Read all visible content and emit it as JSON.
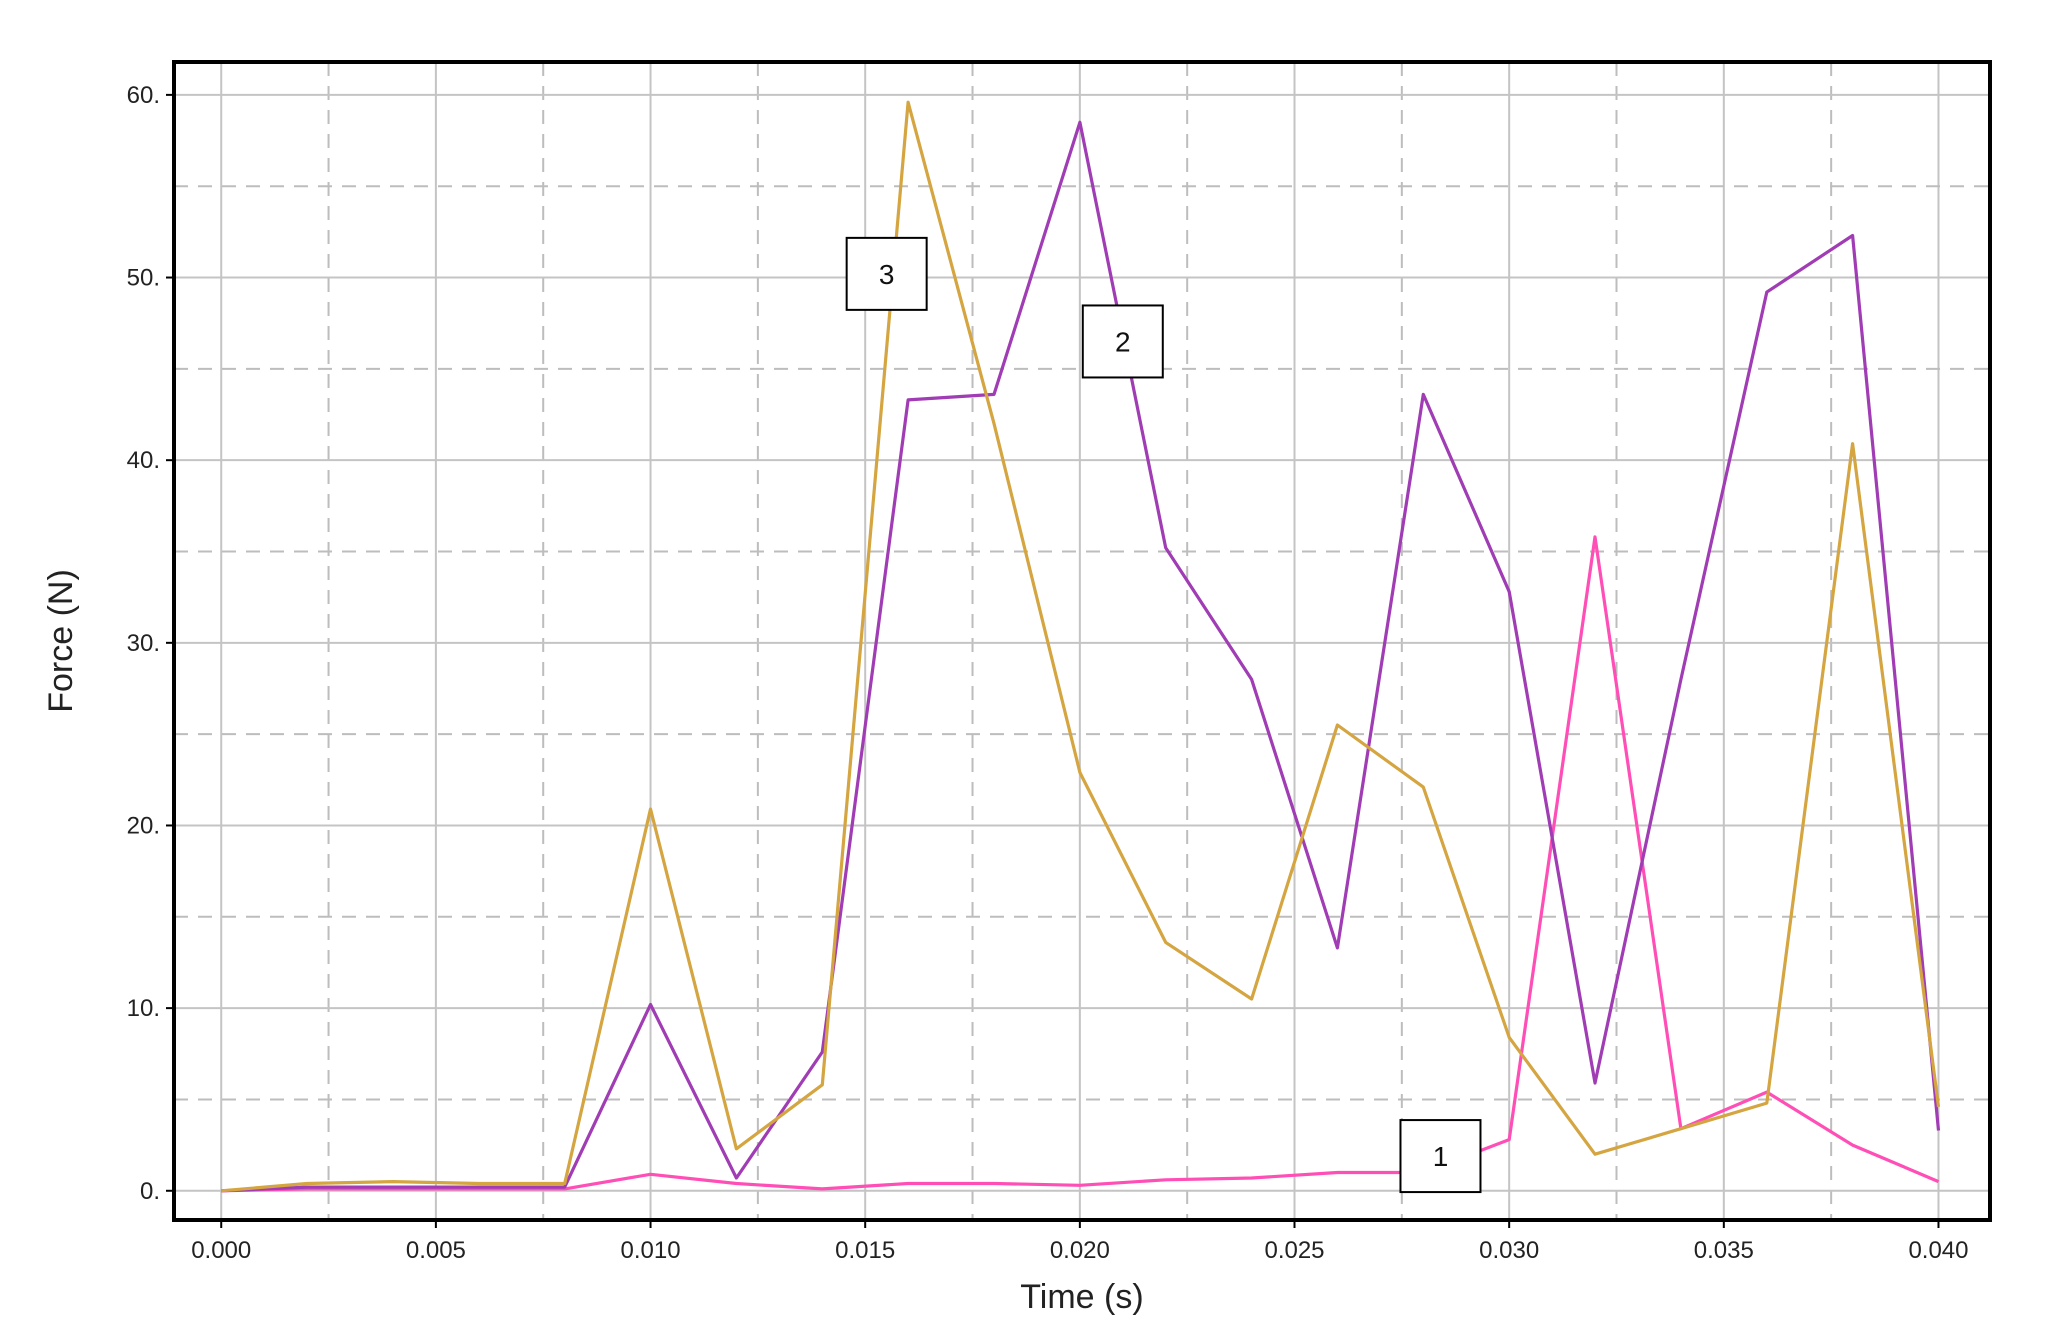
{
  "chart_data": {
    "type": "line",
    "xlabel": "Time (s)",
    "ylabel": "Force (N)",
    "xlim": [
      -0.0011,
      0.0412
    ],
    "ylim": [
      -1.6,
      61.8
    ],
    "x_ticks": [
      0.0,
      0.005,
      0.01,
      0.015,
      0.02,
      0.025,
      0.03,
      0.035,
      0.04
    ],
    "x_tick_labels": [
      "0.000",
      "0.005",
      "0.010",
      "0.015",
      "0.020",
      "0.025",
      "0.030",
      "0.035",
      "0.040"
    ],
    "y_ticks": [
      0,
      10,
      20,
      30,
      40,
      50,
      60
    ],
    "y_tick_labels": [
      "0.",
      "10.",
      "20.",
      "30.",
      "40.",
      "50.",
      "60."
    ],
    "grid": true,
    "legend": "none",
    "x": [
      0.0,
      0.002,
      0.004,
      0.006,
      0.008,
      0.01,
      0.012,
      0.014,
      0.016,
      0.018,
      0.02,
      0.022,
      0.024,
      0.026,
      0.028,
      0.03,
      0.032,
      0.034,
      0.036,
      0.038,
      0.04
    ],
    "series": [
      {
        "label": "1",
        "color": "#ff4fb6",
        "values": [
          0.0,
          0.1,
          0.1,
          0.1,
          0.1,
          0.9,
          0.4,
          0.1,
          0.4,
          0.4,
          0.3,
          0.6,
          0.7,
          1.0,
          1.0,
          2.8,
          35.8,
          3.4,
          5.4,
          2.5,
          0.5
        ]
      },
      {
        "label": "2",
        "color": "#a03cb4",
        "values": [
          0.0,
          0.2,
          0.2,
          0.2,
          0.2,
          10.2,
          0.7,
          7.6,
          43.3,
          43.6,
          58.5,
          35.2,
          28.0,
          13.3,
          43.6,
          32.8,
          5.9,
          28.0,
          49.2,
          52.3,
          3.3
        ]
      },
      {
        "label": "3",
        "color": "#d4a540",
        "values": [
          0.0,
          0.4,
          0.5,
          0.4,
          0.4,
          20.9,
          2.3,
          5.8,
          59.6,
          42.0,
          22.9,
          13.6,
          10.5,
          25.5,
          22.1,
          8.4,
          2.0,
          3.4,
          4.8,
          40.9,
          4.6
        ]
      }
    ],
    "annotations": [
      {
        "text": "3",
        "x": 0.0155,
        "y": 50.2
      },
      {
        "text": "2",
        "x": 0.021,
        "y": 46.5
      },
      {
        "text": "1",
        "x": 0.0284,
        "y": 1.9
      }
    ]
  }
}
